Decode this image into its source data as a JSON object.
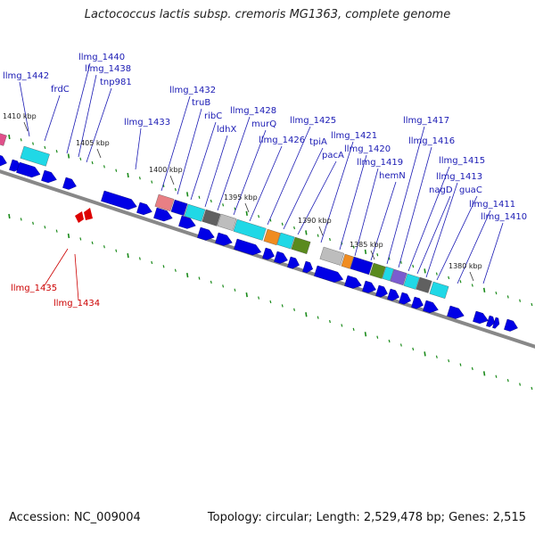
{
  "title": "Lactococcus lactis subsp. cremoris MG1363, complete genome",
  "footer": {
    "accession": "Accession: NC_009004",
    "summary": "Topology: circular; Length: 2,529,478 bp; Genes: 2,515"
  },
  "colors": {
    "forward_cds": "#0000e6",
    "reverse_cds": "#dd0000",
    "backbone": "#888888",
    "marker": "#1a8a1a",
    "label": "#1a1ab4",
    "label_reverse": "#cc0000"
  },
  "scale_ticks": [
    "1410 kbp",
    "1405 kbp",
    "1400 kbp",
    "1395 kbp",
    "1390 kbp",
    "1385 kbp",
    "1380 kbp"
  ],
  "gene_labels": [
    "llmg_1442",
    "frdC",
    "llmg_1440",
    "llmg_1438",
    "tnp981",
    "llmg_1433",
    "llmg_1432",
    "truB",
    "ribC",
    "ldhX",
    "llmg_1428",
    "murQ",
    "llmg_1426",
    "llmg_1425",
    "tpiA",
    "pacA",
    "llmg_1421",
    "llmg_1420",
    "llmg_1419",
    "hemN",
    "llmg_1417",
    "llmg_1416",
    "llmg_1415",
    "nagD",
    "llmg_1413",
    "guaC",
    "llmg_1411",
    "llmg_1410",
    "llmg_1435",
    "llmg_1434"
  ]
}
